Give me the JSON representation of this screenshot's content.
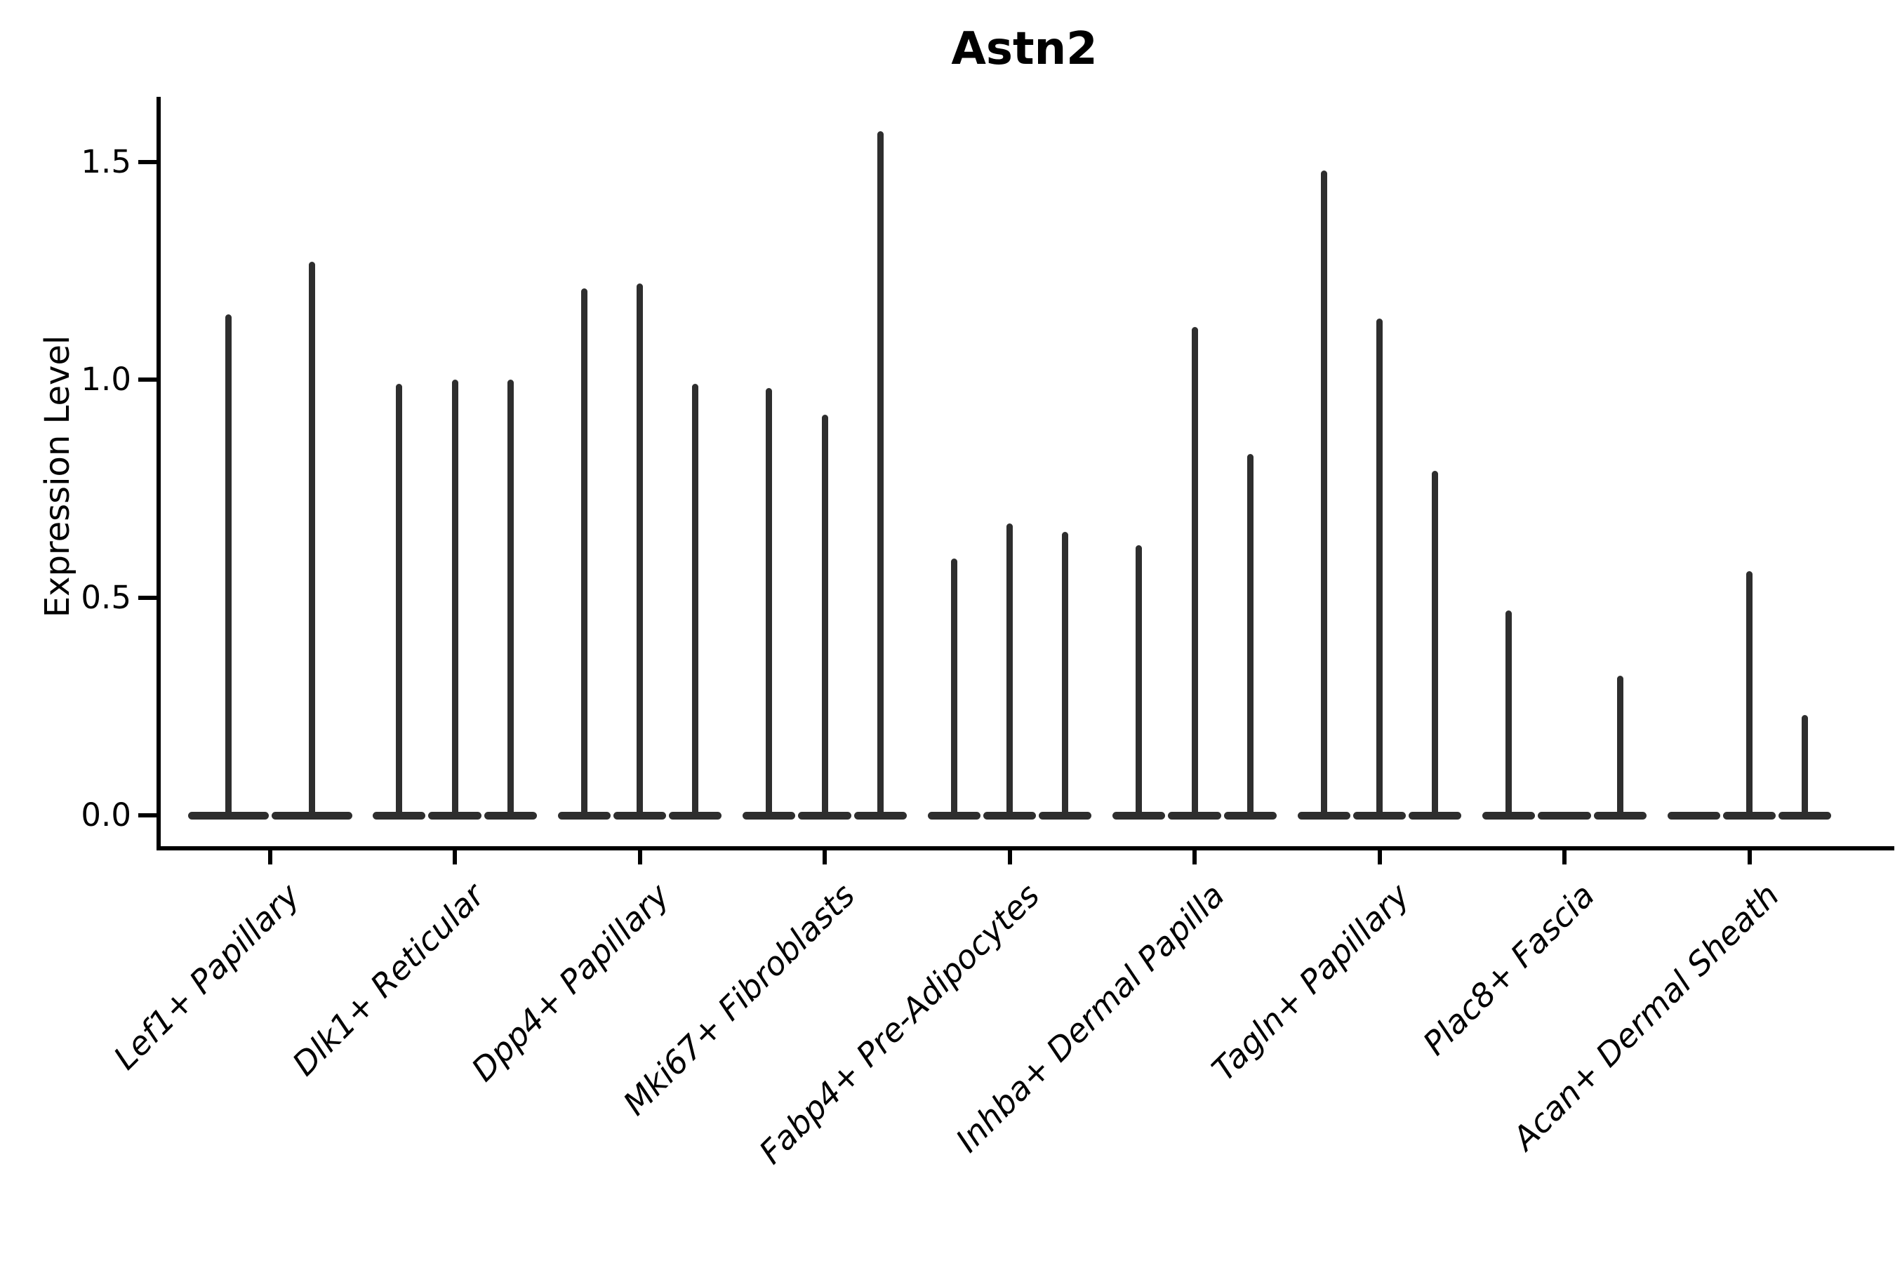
{
  "figure": {
    "title": "Astn2"
  },
  "y_axis": {
    "label": "Expression Level",
    "tick_labels": [
      "0.0",
      "0.5",
      "1.0",
      "1.5"
    ]
  },
  "x_axis": {
    "tick_labels": [
      "Lef1+ Papillary",
      "Dlk1+ Reticular",
      "Dpp4+ Papillary",
      "Mki67+ Fibroblasts",
      "Fabp4+ Pre-Adipocytes",
      "Inhba+ Dermal Papilla",
      "Tagln+ Papillary",
      "Plac8+ Fascia",
      "Acan+ Dermal Sheath"
    ]
  },
  "colors": {
    "violin": "#2e2e2e",
    "axis": "#000000",
    "text": "#000000",
    "background": "#ffffff"
  },
  "chart_data": {
    "type": "violin",
    "title": "Astn2",
    "xlabel": "",
    "ylabel": "Expression Level",
    "ylim": [
      -0.08,
      1.65
    ],
    "yticks": [
      0.0,
      0.5,
      1.0,
      1.5
    ],
    "grid": false,
    "legend": "none",
    "note": "Single-cell gene expression violin plot; each category holds 2-3 narrow violins (one per sample) that are flat at 0 with a thin spike up to the max expression value; 0 means an empty/flat violin",
    "categories": [
      "Lef1+ Papillary",
      "Dlk1+ Reticular",
      "Dpp4+ Papillary",
      "Mki67+ Fibroblasts",
      "Fabp4+ Pre-Adipocytes",
      "Inhba+ Dermal Papilla",
      "Tagln+ Papillary",
      "Plac8+ Fascia",
      "Acan+ Dermal Sheath"
    ],
    "groups": [
      {
        "category": "Lef1+ Papillary",
        "violin_max_expression": [
          1.15,
          1.27
        ]
      },
      {
        "category": "Dlk1+ Reticular",
        "violin_max_expression": [
          0.99,
          1.0,
          1.0
        ]
      },
      {
        "category": "Dpp4+ Papillary",
        "violin_max_expression": [
          1.21,
          1.22,
          0.99
        ]
      },
      {
        "category": "Mki67+ Fibroblasts",
        "violin_max_expression": [
          0.98,
          0.92,
          1.57
        ]
      },
      {
        "category": "Fabp4+ Pre-Adipocytes",
        "violin_max_expression": [
          0.59,
          0.67,
          0.65
        ]
      },
      {
        "category": "Inhba+ Dermal Papilla",
        "violin_max_expression": [
          0.62,
          1.12,
          0.83
        ]
      },
      {
        "category": "Tagln+ Papillary",
        "violin_max_expression": [
          1.48,
          1.14,
          0.79
        ]
      },
      {
        "category": "Plac8+ Fascia",
        "violin_max_expression": [
          0.47,
          0.0,
          0.32
        ]
      },
      {
        "category": "Acan+ Dermal Sheath",
        "violin_max_expression": [
          0.0,
          0.56,
          0.23
        ]
      }
    ]
  }
}
